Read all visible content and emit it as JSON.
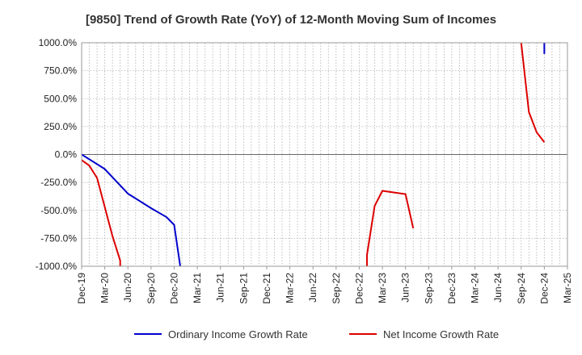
{
  "chart_data": {
    "type": "line",
    "title": "[9850]  Trend of Growth Rate (YoY) of 12-Month Moving Sum of Incomes",
    "xlabel": "",
    "ylabel": "",
    "ylim": [
      -1000,
      1000
    ],
    "yticks": [
      1000,
      750,
      500,
      250,
      0,
      -250,
      -500,
      -750,
      -1000
    ],
    "ytick_labels": [
      "1000.0%",
      "750.0%",
      "500.0%",
      "250.0%",
      "0.0%",
      "-250.0%",
      "-500.0%",
      "-750.0%",
      "-1000.0%"
    ],
    "x_months": [
      "Dec-19",
      "Jan-20",
      "Feb-20",
      "Mar-20",
      "Apr-20",
      "May-20",
      "Jun-20",
      "Jul-20",
      "Aug-20",
      "Sep-20",
      "Oct-20",
      "Nov-20",
      "Dec-20",
      "Jan-21",
      "Feb-21",
      "Mar-21",
      "Apr-21",
      "May-21",
      "Jun-21",
      "Jul-21",
      "Aug-21",
      "Sep-21",
      "Oct-21",
      "Nov-21",
      "Dec-21",
      "Jan-22",
      "Feb-22",
      "Mar-22",
      "Apr-22",
      "May-22",
      "Jun-22",
      "Jul-22",
      "Aug-22",
      "Sep-22",
      "Oct-22",
      "Nov-22",
      "Dec-22",
      "Jan-23",
      "Feb-23",
      "Mar-23",
      "Apr-23",
      "May-23",
      "Jun-23",
      "Jul-23",
      "Aug-23",
      "Sep-23",
      "Oct-23",
      "Nov-23",
      "Dec-23",
      "Jan-24",
      "Feb-24",
      "Mar-24",
      "Apr-24",
      "May-24",
      "Jun-24",
      "Jul-24",
      "Aug-24",
      "Sep-24",
      "Oct-24",
      "Nov-24",
      "Dec-24",
      "Jan-25",
      "Feb-25",
      "Mar-25"
    ],
    "x_tick_labels": [
      "Dec-19",
      "Mar-20",
      "Jun-20",
      "Sep-20",
      "Dec-20",
      "Mar-21",
      "Jun-21",
      "Sep-21",
      "Dec-21",
      "Mar-22",
      "Jun-22",
      "Sep-22",
      "Dec-22",
      "Mar-23",
      "Jun-23",
      "Sep-23",
      "Dec-23",
      "Mar-24",
      "Jun-24",
      "Sep-24",
      "Dec-24",
      "Mar-25"
    ],
    "grid": true,
    "legend_position": "bottom",
    "series": [
      {
        "name": "Ordinary Income Growth Rate",
        "color": "#0000cc",
        "points": [
          [
            "Dec-19",
            0
          ],
          [
            "Mar-20",
            -130
          ],
          [
            "Jun-20",
            -350
          ],
          [
            "Sep-20",
            -480
          ],
          [
            "Nov-20",
            -560
          ],
          [
            "Dec-20",
            -630
          ],
          [
            "Jan-21",
            -1100
          ]
        ],
        "points_2": [
          [
            "Dec-24",
            900
          ],
          [
            "Dec-24",
            1100
          ]
        ]
      },
      {
        "name": "Net Income Growth Rate",
        "color": "#dd0000",
        "points": [
          [
            "Dec-19",
            -50
          ],
          [
            "Jan-20",
            -100
          ],
          [
            "Feb-20",
            -210
          ],
          [
            "Mar-20",
            -470
          ],
          [
            "Apr-20",
            -730
          ],
          [
            "May-20",
            -950
          ],
          [
            "May-20",
            -1100
          ]
        ],
        "points_2": [
          [
            "Jan-23",
            -1100
          ],
          [
            "Jan-23",
            -900
          ],
          [
            "Feb-23",
            -460
          ],
          [
            "Mar-23",
            -325
          ],
          [
            "Jun-23",
            -355
          ],
          [
            "Jul-23",
            -660
          ]
        ],
        "points_3": [
          [
            "Sep-24",
            1000
          ],
          [
            "Oct-24",
            380
          ],
          [
            "Nov-24",
            200
          ],
          [
            "Dec-24",
            110
          ]
        ]
      }
    ]
  }
}
